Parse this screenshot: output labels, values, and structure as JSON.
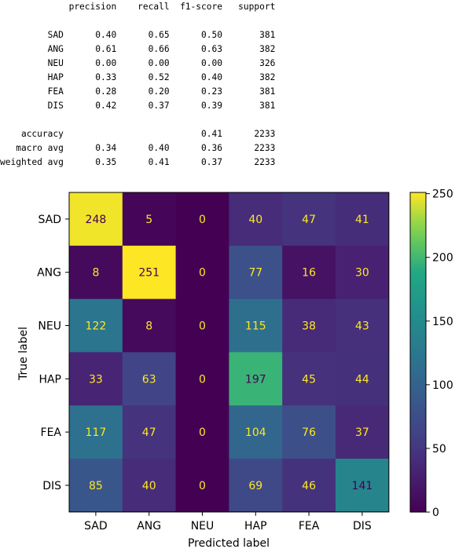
{
  "report": {
    "header": [
      "precision",
      "recall",
      "f1-score",
      "support"
    ],
    "rows": [
      {
        "label": "SAD",
        "precision": "0.40",
        "recall": "0.65",
        "f1": "0.50",
        "support": "381"
      },
      {
        "label": "ANG",
        "precision": "0.61",
        "recall": "0.66",
        "f1": "0.63",
        "support": "382"
      },
      {
        "label": "NEU",
        "precision": "0.00",
        "recall": "0.00",
        "f1": "0.00",
        "support": "326"
      },
      {
        "label": "HAP",
        "precision": "0.33",
        "recall": "0.52",
        "f1": "0.40",
        "support": "382"
      },
      {
        "label": "FEA",
        "precision": "0.28",
        "recall": "0.20",
        "f1": "0.23",
        "support": "381"
      },
      {
        "label": "DIS",
        "precision": "0.42",
        "recall": "0.37",
        "f1": "0.39",
        "support": "381"
      }
    ],
    "summary": [
      {
        "label": "accuracy",
        "precision": "",
        "recall": "",
        "f1": "0.41",
        "support": "2233"
      },
      {
        "label": "macro avg",
        "precision": "0.34",
        "recall": "0.40",
        "f1": "0.36",
        "support": "2233"
      },
      {
        "label": "weighted avg",
        "precision": "0.35",
        "recall": "0.41",
        "f1": "0.37",
        "support": "2233"
      }
    ]
  },
  "chart_data": {
    "type": "heatmap",
    "title": "",
    "xlabel": "Predicted label",
    "ylabel": "True label",
    "x_categories": [
      "SAD",
      "ANG",
      "NEU",
      "HAP",
      "FEA",
      "DIS"
    ],
    "y_categories": [
      "SAD",
      "ANG",
      "NEU",
      "HAP",
      "FEA",
      "DIS"
    ],
    "values": [
      [
        248,
        5,
        0,
        40,
        47,
        41
      ],
      [
        8,
        251,
        0,
        77,
        16,
        30
      ],
      [
        122,
        8,
        0,
        115,
        38,
        43
      ],
      [
        33,
        63,
        0,
        197,
        45,
        44
      ],
      [
        117,
        47,
        0,
        104,
        76,
        37
      ],
      [
        85,
        40,
        0,
        69,
        46,
        141
      ]
    ],
    "colormap": "viridis",
    "vmin": 0,
    "vmax": 251,
    "colorbar_ticks": [
      0,
      50,
      100,
      150,
      200,
      250
    ],
    "grid": false
  }
}
